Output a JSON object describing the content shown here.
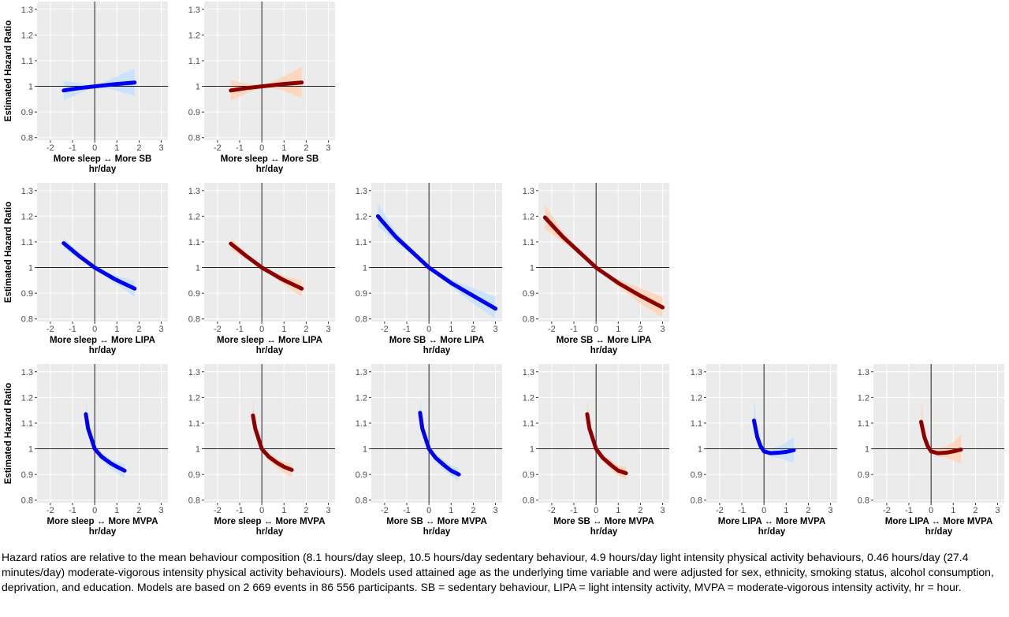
{
  "chart_data": {
    "type": "line",
    "ylabel": "Estimated Hazard Ratio",
    "xunit": "hr/day",
    "xticks": [
      "-2",
      "-1",
      "0",
      "1",
      "2",
      "3"
    ],
    "yticks": [
      "0.8",
      "0.9",
      "1",
      "1.1",
      "1.2",
      "1.3"
    ],
    "xlim": [
      -2.6,
      3.3
    ],
    "ylim": [
      0.79,
      1.33
    ],
    "reference_lines": {
      "x": 0,
      "y": 1
    },
    "grid": true,
    "colors": {
      "blue_line": "#0000ee",
      "blue_band": "#c6e0ff",
      "red_line": "#8b0000",
      "red_band": "#ffd3b6",
      "panel_bg": "#ebebeb",
      "grid": "#ffffff"
    },
    "panels": [
      {
        "row": 0,
        "col": 0,
        "xlabel": "More sleep ↔ More SB",
        "color": "blue",
        "x": [
          -1.4,
          -0.7,
          0,
          0.9,
          1.8
        ],
        "y": [
          0.984,
          0.993,
          1.0,
          1.008,
          1.015
        ],
        "lower": [
          0.945,
          0.972,
          1.0,
          0.985,
          0.962
        ],
        "upper": [
          1.022,
          1.012,
          1.0,
          1.035,
          1.07
        ]
      },
      {
        "row": 0,
        "col": 1,
        "xlabel": "More sleep ↔ More SB",
        "color": "red",
        "x": [
          -1.4,
          -0.7,
          0,
          0.9,
          1.8
        ],
        "y": [
          0.984,
          0.993,
          1.0,
          1.008,
          1.015
        ],
        "lower": [
          0.945,
          0.972,
          1.0,
          0.985,
          0.955
        ],
        "upper": [
          1.022,
          1.012,
          1.0,
          1.035,
          1.075
        ]
      },
      {
        "row": 1,
        "col": 0,
        "xlabel": "More sleep ↔ More LIPA",
        "color": "blue",
        "x": [
          -1.4,
          -0.7,
          0,
          0.9,
          1.8
        ],
        "y": [
          1.095,
          1.045,
          1.0,
          0.955,
          0.918
        ],
        "lower": [
          1.075,
          1.033,
          1.0,
          0.94,
          0.885
        ],
        "upper": [
          1.115,
          1.057,
          1.0,
          0.97,
          0.948
        ]
      },
      {
        "row": 1,
        "col": 1,
        "xlabel": "More sleep ↔ More LIPA",
        "color": "red",
        "x": [
          -1.4,
          -0.7,
          0,
          0.9,
          1.8
        ],
        "y": [
          1.093,
          1.045,
          1.0,
          0.955,
          0.918
        ],
        "lower": [
          1.07,
          1.033,
          1.0,
          0.94,
          0.885
        ],
        "upper": [
          1.115,
          1.057,
          1.0,
          0.97,
          0.95
        ]
      },
      {
        "row": 1,
        "col": 2,
        "xlabel": "More SB ↔ More LIPA",
        "color": "blue",
        "x": [
          -2.3,
          -1.5,
          -0.75,
          0,
          1,
          2,
          3
        ],
        "y": [
          1.2,
          1.12,
          1.06,
          1.0,
          0.94,
          0.89,
          0.84
        ],
        "lower": [
          1.16,
          1.1,
          1.05,
          1.0,
          0.925,
          0.86,
          0.8
        ],
        "upper": [
          1.25,
          1.14,
          1.07,
          1.0,
          0.955,
          0.92,
          0.885
        ]
      },
      {
        "row": 1,
        "col": 3,
        "xlabel": "More SB ↔ More LIPA",
        "color": "red",
        "x": [
          -2.3,
          -1.5,
          -0.75,
          0,
          1,
          2,
          3
        ],
        "y": [
          1.195,
          1.12,
          1.06,
          1.0,
          0.94,
          0.89,
          0.845
        ],
        "lower": [
          1.15,
          1.1,
          1.05,
          1.0,
          0.925,
          0.86,
          0.805
        ],
        "upper": [
          1.245,
          1.14,
          1.07,
          1.0,
          0.955,
          0.92,
          0.885
        ]
      },
      {
        "row": 2,
        "col": 0,
        "xlabel": "More sleep ↔ More MVPA",
        "color": "blue",
        "x": [
          -0.4,
          -0.3,
          -0.15,
          0,
          0.3,
          0.7,
          1.0,
          1.35
        ],
        "y": [
          1.135,
          1.08,
          1.04,
          1.0,
          0.97,
          0.945,
          0.93,
          0.915
        ],
        "lower": [
          1.095,
          1.06,
          1.025,
          1.0,
          0.955,
          0.925,
          0.905,
          0.885
        ],
        "upper": [
          1.2,
          1.115,
          1.06,
          1.0,
          0.985,
          0.96,
          0.95,
          0.94
        ]
      },
      {
        "row": 2,
        "col": 1,
        "xlabel": "More sleep ↔ More MVPA",
        "color": "red",
        "x": [
          -0.4,
          -0.3,
          -0.15,
          0,
          0.3,
          0.7,
          1.0,
          1.35
        ],
        "y": [
          1.13,
          1.08,
          1.04,
          1.0,
          0.97,
          0.945,
          0.93,
          0.918
        ],
        "lower": [
          1.09,
          1.06,
          1.025,
          1.0,
          0.955,
          0.925,
          0.905,
          0.89
        ],
        "upper": [
          1.2,
          1.115,
          1.06,
          1.0,
          0.985,
          0.96,
          0.95,
          0.94
        ]
      },
      {
        "row": 2,
        "col": 2,
        "xlabel": "More SB ↔ More MVPA",
        "color": "blue",
        "x": [
          -0.4,
          -0.3,
          -0.15,
          0,
          0.3,
          0.7,
          1.0,
          1.35
        ],
        "y": [
          1.14,
          1.08,
          1.04,
          1.0,
          0.965,
          0.935,
          0.915,
          0.9
        ],
        "lower": [
          1.1,
          1.06,
          1.025,
          1.0,
          0.95,
          0.915,
          0.895,
          0.875
        ],
        "upper": [
          1.19,
          1.12,
          1.06,
          1.0,
          0.98,
          0.955,
          0.935,
          0.925
        ]
      },
      {
        "row": 2,
        "col": 3,
        "xlabel": "More SB ↔ More MVPA",
        "color": "red",
        "x": [
          -0.4,
          -0.3,
          -0.15,
          0,
          0.3,
          0.7,
          1.0,
          1.35
        ],
        "y": [
          1.135,
          1.08,
          1.04,
          1.0,
          0.965,
          0.935,
          0.915,
          0.905
        ],
        "lower": [
          1.095,
          1.06,
          1.025,
          1.0,
          0.95,
          0.915,
          0.895,
          0.88
        ],
        "upper": [
          1.19,
          1.12,
          1.06,
          1.0,
          0.98,
          0.955,
          0.935,
          0.93
        ]
      },
      {
        "row": 2,
        "col": 4,
        "xlabel": "More LIPA ↔ More MVPA",
        "color": "blue",
        "x": [
          -0.45,
          -0.3,
          -0.15,
          0,
          0.3,
          0.7,
          1.0,
          1.35
        ],
        "y": [
          1.11,
          1.045,
          1.01,
          0.99,
          0.983,
          0.985,
          0.988,
          0.995
        ],
        "lower": [
          1.08,
          1.03,
          1.0,
          0.98,
          0.97,
          0.965,
          0.955,
          0.945
        ],
        "upper": [
          1.2,
          1.07,
          1.02,
          1.0,
          1.0,
          1.01,
          1.025,
          1.045
        ]
      },
      {
        "row": 2,
        "col": 5,
        "xlabel": "More LIPA ↔ More MVPA",
        "color": "red",
        "x": [
          -0.45,
          -0.3,
          -0.15,
          0,
          0.3,
          0.7,
          1.0,
          1.35
        ],
        "y": [
          1.105,
          1.045,
          1.01,
          0.99,
          0.983,
          0.985,
          0.99,
          0.997
        ],
        "lower": [
          1.075,
          1.03,
          1.0,
          0.98,
          0.97,
          0.965,
          0.955,
          0.94
        ],
        "upper": [
          1.19,
          1.07,
          1.02,
          1.0,
          1.0,
          1.01,
          1.025,
          1.055
        ]
      }
    ]
  },
  "caption": "Hazard ratios are relative to the mean behaviour composition (8.1 hours/day sleep, 10.5 hours/day sedentary behaviour, 4.9 hours/day light intensity physical activity behaviours, 0.46 hours/day (27.4 minutes/day) moderate-vigorous intensity physical activity behaviours). Models used attained age as the underlying time variable and were adjusted for sex, ethnicity, smoking status, alcohol consumption, deprivation, and education. Models are based on 2 669 events in 86 556 participants. SB = sedentary behaviour, LIPA = light intensity activity, MVPA = moderate-vigorous intensity activity, hr = hour."
}
